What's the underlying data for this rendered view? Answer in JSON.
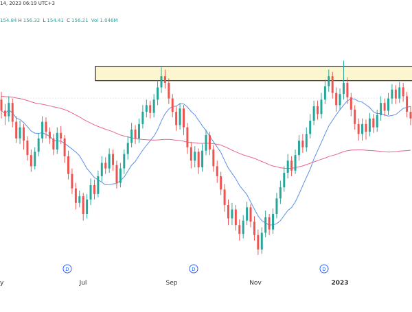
{
  "header": {
    "line1": "14, 2023 06:19 UTC+3",
    "line2_open": "154.84",
    "line2_high": "156.32",
    "line2_low": "154.41",
    "line2_close": "156.21",
    "line2_vol": "Vol 1.046M",
    "labels": {
      "o": "",
      "h": "H",
      "l": "L",
      "c": "C"
    }
  },
  "chart_data": {
    "type": "candlestick",
    "x_tick_labels": [
      "y",
      "Jul",
      "Sep",
      "Nov",
      "2023"
    ],
    "event_markers": [
      "D",
      "D",
      "D"
    ],
    "colors": {
      "up": "#26a69a",
      "down": "#ef5350",
      "ma_fast": "#5b8fe6",
      "ma_slow": "#e86488",
      "zone_fill": "#fbf5d0",
      "zone_border": "#000000",
      "gridline": "#b8d4ec"
    },
    "resistance_zone": {
      "top": 156.5,
      "bottom": 155.2
    },
    "ylim": [
      139,
      160
    ],
    "series": [
      {
        "name": "price",
        "points": [
          [
            153.5,
            152.5,
            154.2,
            151.8
          ],
          [
            152.5,
            152.0,
            153.1,
            151.2
          ],
          [
            152.0,
            153.2,
            153.8,
            151.5
          ],
          [
            153.2,
            151.5,
            153.6,
            151.0
          ],
          [
            151.5,
            150.0,
            152.0,
            149.6
          ],
          [
            150.0,
            151.0,
            151.6,
            149.5
          ],
          [
            151.0,
            149.8,
            151.3,
            149.0
          ],
          [
            149.8,
            148.5,
            150.2,
            148.0
          ],
          [
            148.5,
            147.5,
            149.0,
            147.0
          ],
          [
            147.5,
            148.8,
            149.2,
            147.2
          ],
          [
            148.8,
            150.0,
            150.5,
            148.4
          ],
          [
            150.0,
            151.5,
            152.0,
            149.6
          ],
          [
            151.5,
            150.6,
            151.9,
            150.0
          ],
          [
            150.6,
            150.0,
            151.0,
            149.5
          ],
          [
            150.0,
            149.0,
            150.4,
            148.5
          ],
          [
            149.0,
            150.5,
            151.0,
            148.6
          ],
          [
            150.5,
            150.0,
            151.1,
            149.5
          ],
          [
            150.0,
            148.4,
            150.3,
            147.8
          ],
          [
            148.4,
            146.8,
            148.9,
            146.3
          ],
          [
            146.8,
            145.5,
            147.3,
            145.0
          ],
          [
            145.5,
            144.2,
            146.0,
            143.6
          ],
          [
            144.2,
            144.8,
            145.3,
            143.8
          ],
          [
            144.8,
            143.2,
            145.1,
            142.6
          ],
          [
            143.2,
            144.5,
            145.0,
            142.8
          ],
          [
            144.5,
            145.8,
            146.4,
            144.0
          ],
          [
            145.8,
            145.0,
            146.3,
            144.5
          ],
          [
            145.0,
            146.6,
            147.1,
            144.7
          ],
          [
            146.6,
            147.8,
            148.4,
            146.1
          ],
          [
            147.8,
            147.3,
            148.3,
            146.8
          ],
          [
            147.3,
            148.6,
            149.1,
            146.9
          ],
          [
            148.6,
            147.6,
            149.0,
            147.1
          ],
          [
            147.6,
            146.0,
            148.0,
            145.5
          ],
          [
            146.0,
            147.3,
            147.8,
            145.6
          ],
          [
            147.3,
            148.6,
            149.0,
            146.8
          ],
          [
            148.6,
            149.6,
            150.2,
            148.1
          ],
          [
            149.6,
            150.8,
            151.4,
            149.2
          ],
          [
            150.8,
            150.0,
            151.2,
            149.5
          ],
          [
            150.0,
            151.3,
            151.8,
            149.6
          ],
          [
            151.3,
            152.4,
            153.0,
            150.9
          ],
          [
            152.4,
            153.0,
            153.5,
            151.9
          ],
          [
            153.0,
            152.3,
            153.4,
            151.8
          ],
          [
            152.3,
            153.5,
            154.0,
            151.9
          ],
          [
            153.5,
            154.6,
            155.2,
            153.0
          ],
          [
            154.6,
            155.6,
            156.4,
            154.1
          ],
          [
            155.6,
            155.0,
            156.2,
            154.5
          ],
          [
            155.0,
            153.6,
            155.4,
            153.1
          ],
          [
            153.6,
            152.4,
            154.0,
            151.9
          ],
          [
            152.4,
            151.2,
            152.9,
            150.7
          ],
          [
            151.2,
            152.7,
            153.2,
            150.8
          ],
          [
            152.7,
            151.0,
            153.0,
            150.3
          ],
          [
            151.0,
            149.2,
            151.4,
            148.6
          ],
          [
            149.2,
            148.0,
            149.7,
            147.3
          ],
          [
            148.0,
            148.8,
            149.3,
            147.4
          ],
          [
            148.8,
            147.4,
            149.1,
            146.8
          ],
          [
            147.4,
            148.9,
            149.5,
            147.0
          ],
          [
            148.9,
            150.3,
            150.8,
            148.5
          ],
          [
            150.3,
            149.0,
            150.6,
            148.5
          ],
          [
            149.0,
            147.5,
            149.4,
            147.0
          ],
          [
            147.5,
            146.6,
            148.0,
            146.0
          ],
          [
            146.6,
            145.4,
            147.0,
            144.9
          ],
          [
            145.4,
            144.0,
            145.9,
            143.4
          ],
          [
            144.0,
            142.8,
            144.5,
            142.2
          ],
          [
            142.8,
            143.6,
            144.2,
            142.2
          ],
          [
            143.6,
            142.2,
            144.0,
            141.7
          ],
          [
            142.2,
            141.4,
            142.7,
            140.8
          ],
          [
            141.4,
            142.6,
            143.1,
            141.0
          ],
          [
            142.6,
            143.8,
            144.3,
            142.2
          ],
          [
            143.8,
            142.5,
            144.1,
            142.0
          ],
          [
            142.5,
            141.3,
            143.0,
            140.8
          ],
          [
            141.3,
            140.0,
            141.8,
            139.5
          ],
          [
            140.0,
            141.5,
            142.0,
            139.6
          ],
          [
            141.5,
            142.9,
            143.5,
            141.1
          ],
          [
            142.9,
            141.8,
            143.2,
            141.3
          ],
          [
            141.8,
            143.2,
            143.7,
            141.4
          ],
          [
            143.2,
            144.6,
            145.1,
            142.8
          ],
          [
            144.6,
            145.6,
            146.2,
            144.1
          ],
          [
            145.6,
            146.9,
            147.5,
            145.2
          ],
          [
            146.9,
            148.0,
            148.6,
            146.4
          ],
          [
            148.0,
            147.1,
            148.4,
            146.6
          ],
          [
            147.1,
            148.5,
            149.0,
            146.8
          ],
          [
            148.5,
            149.8,
            150.3,
            148.0
          ],
          [
            149.8,
            149.2,
            150.4,
            148.7
          ],
          [
            149.2,
            150.4,
            151.0,
            148.8
          ],
          [
            150.4,
            151.6,
            152.2,
            150.0
          ],
          [
            151.6,
            152.9,
            153.4,
            151.2
          ],
          [
            152.9,
            152.2,
            153.4,
            151.7
          ],
          [
            152.2,
            153.5,
            154.1,
            151.8
          ],
          [
            153.5,
            154.7,
            155.3,
            153.1
          ],
          [
            154.7,
            155.6,
            156.2,
            154.2
          ],
          [
            155.6,
            154.1,
            156.0,
            153.6
          ],
          [
            154.1,
            153.0,
            154.6,
            152.4
          ],
          [
            153.0,
            154.0,
            154.5,
            152.6
          ],
          [
            154.0,
            155.0,
            157.0,
            153.5
          ],
          [
            155.0,
            153.7,
            155.5,
            153.1
          ],
          [
            153.7,
            152.6,
            154.1,
            152.0
          ],
          [
            152.6,
            151.3,
            153.0,
            150.8
          ],
          [
            151.3,
            150.4,
            151.8,
            149.8
          ],
          [
            150.4,
            151.3,
            151.8,
            149.8
          ],
          [
            151.3,
            150.6,
            151.7,
            149.9
          ],
          [
            150.6,
            151.8,
            152.3,
            150.2
          ],
          [
            151.8,
            151.0,
            152.2,
            150.5
          ],
          [
            151.0,
            152.1,
            152.6,
            150.6
          ],
          [
            152.1,
            153.2,
            153.8,
            151.6
          ],
          [
            153.2,
            152.5,
            153.6,
            152.0
          ],
          [
            152.5,
            153.6,
            154.1,
            152.1
          ],
          [
            153.6,
            154.4,
            154.9,
            153.1
          ],
          [
            154.4,
            153.6,
            154.8,
            153.1
          ],
          [
            153.6,
            154.6,
            155.1,
            153.2
          ],
          [
            154.6,
            153.8,
            155.0,
            153.3
          ],
          [
            153.8,
            152.4,
            154.2,
            151.9
          ],
          [
            152.4,
            151.8,
            152.9,
            151.2
          ]
        ]
      },
      {
        "name": "ma_fast",
        "values": []
      },
      {
        "name": "ma_slow",
        "values": []
      }
    ]
  }
}
